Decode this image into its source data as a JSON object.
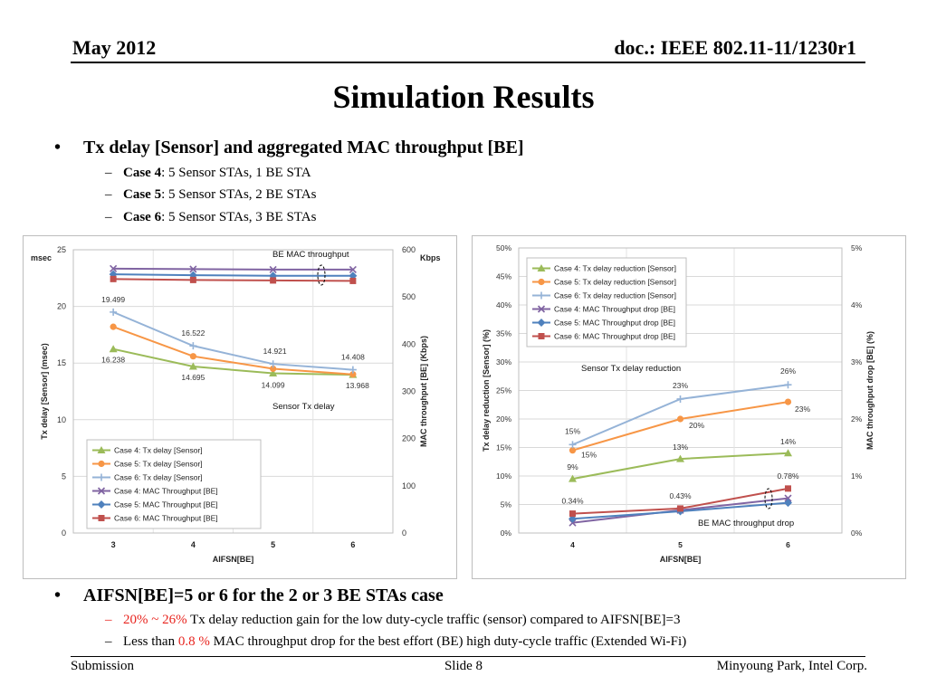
{
  "header": {
    "date": "May 2012",
    "doc": "doc.: IEEE 802.11-11/1230r1"
  },
  "title": "Simulation Results",
  "bullet1": {
    "text": "Tx delay [Sensor] and aggregated MAC throughput [BE]",
    "subs": [
      {
        "bold": "Case 4",
        "rest": ": 5 Sensor STAs, 1 BE STA"
      },
      {
        "bold": "Case 5",
        "rest": ": 5 Sensor STAs, 2 BE STAs"
      },
      {
        "bold": "Case 6",
        "rest": ": 5 Sensor STAs, 3 BE STAs"
      }
    ]
  },
  "bullet2": {
    "text": "AIFSN[BE]=5 or 6 for the 2 or 3 BE STAs case",
    "subs": [
      {
        "highlight": "20% ~ 26%",
        "rest": " Tx delay reduction gain for the low duty-cycle traffic (sensor) compared to AIFSN[BE]=3"
      },
      {
        "pre": "Less than ",
        "highlight": "0.8 %",
        "rest": " MAC throughput drop for the best effort (BE) high duty-cycle traffic (Extended Wi-Fi)"
      }
    ]
  },
  "footer": {
    "left": "Submission",
    "center": "Slide 8",
    "right": "Minyoung Park, Intel Corp."
  },
  "colors": {
    "green": "#9bbb59",
    "orange": "#f79646",
    "lightblue": "#95b3d7",
    "purple": "#8064a2",
    "blue": "#4f81bd",
    "red": "#c0504d",
    "highlight": "#e8241e"
  },
  "chart_data": [
    {
      "type": "line",
      "x": [
        3,
        4,
        5,
        6
      ],
      "xlabel": "AIFSN[BE]",
      "ylabel": "Tx delay [Sensor] (msec)",
      "y2label": "MAC throughput [BE] (Kbps)",
      "yunit": "msec",
      "y2unit": "Kbps",
      "ylim": [
        0,
        25
      ],
      "y2lim": [
        0,
        600
      ],
      "yticks": [
        "0",
        "5",
        "10",
        "15",
        "20",
        "25"
      ],
      "y2ticks": [
        "0",
        "100",
        "200",
        "300",
        "400",
        "500",
        "600"
      ],
      "grid": true,
      "legend": "bottom-left",
      "annotations": [
        "BE MAC throughput",
        "Sensor Tx delay"
      ],
      "series": [
        {
          "name": "Case 4: Tx delay [Sensor]",
          "axis": "left",
          "color": "#9bbb59",
          "marker": "triangle",
          "values": [
            16.238,
            14.695,
            14.099,
            13.968
          ],
          "labels": [
            "16.238",
            "14.695",
            "14.099",
            "13.968"
          ]
        },
        {
          "name": "Case 5: Tx delay [Sensor]",
          "axis": "left",
          "color": "#f79646",
          "marker": "circle",
          "values": [
            18.2,
            15.6,
            14.5,
            14.0
          ],
          "labels": [
            "",
            "",
            "",
            ""
          ]
        },
        {
          "name": "Case 6: Tx delay [Sensor]",
          "axis": "left",
          "color": "#95b3d7",
          "marker": "plus",
          "values": [
            19.499,
            16.522,
            14.921,
            14.408
          ],
          "labels": [
            "19.499",
            "16.522",
            "14.921",
            "14.408"
          ]
        },
        {
          "name": "Case 4: MAC Throughput [BE]",
          "axis": "right",
          "color": "#8064a2",
          "marker": "x",
          "values": [
            560,
            559,
            558,
            558
          ],
          "labels": [
            "",
            "",
            "",
            ""
          ]
        },
        {
          "name": "Case 5: MAC Throughput [BE]",
          "axis": "right",
          "color": "#4f81bd",
          "marker": "diamond",
          "values": [
            548,
            546,
            545,
            545
          ],
          "labels": [
            "",
            "",
            "",
            ""
          ]
        },
        {
          "name": "Case 6: MAC Throughput [BE]",
          "axis": "right",
          "color": "#c0504d",
          "marker": "square",
          "values": [
            538,
            536,
            535,
            534
          ],
          "labels": [
            "",
            "",
            "",
            ""
          ]
        }
      ]
    },
    {
      "type": "line",
      "x": [
        4,
        5,
        6
      ],
      "xlabel": "AIFSN[BE]",
      "ylabel": "Tx delay reduction [Sensor] (%)",
      "y2label": "MAC throughput drop [BE] (%)",
      "ylim": [
        0,
        50
      ],
      "y2lim": [
        0,
        5
      ],
      "yticks": [
        "0%",
        "5%",
        "10%",
        "15%",
        "20%",
        "25%",
        "30%",
        "35%",
        "40%",
        "45%",
        "50%"
      ],
      "y2ticks": [
        "0%",
        "1%",
        "2%",
        "3%",
        "4%",
        "5%"
      ],
      "grid": true,
      "legend": "top-left",
      "annotations": [
        "Sensor Tx delay reduction",
        "BE MAC throughput drop"
      ],
      "series": [
        {
          "name": "Case 4: Tx delay reduction [Sensor]",
          "axis": "left",
          "color": "#9bbb59",
          "marker": "triangle",
          "values": [
            9.5,
            13.0,
            14.0
          ],
          "labels": [
            "9%",
            "13%",
            "14%"
          ]
        },
        {
          "name": "Case 5: Tx delay reduction [Sensor]",
          "axis": "left",
          "color": "#f79646",
          "marker": "circle",
          "values": [
            14.5,
            20.0,
            23.0
          ],
          "labels": [
            "15%",
            "20%",
            "23%"
          ]
        },
        {
          "name": "Case 6: Tx delay reduction [Sensor]",
          "axis": "left",
          "color": "#95b3d7",
          "marker": "plus",
          "values": [
            15.5,
            23.5,
            26.0
          ],
          "labels": [
            "15%",
            "23%",
            "26%"
          ]
        },
        {
          "name": "Case 4: MAC Throughput drop [BE]",
          "axis": "right",
          "color": "#8064a2",
          "marker": "x",
          "values": [
            0.18,
            0.4,
            0.61
          ],
          "labels": [
            "",
            "",
            ""
          ]
        },
        {
          "name": "Case 5: MAC Throughput drop [BE]",
          "axis": "right",
          "color": "#4f81bd",
          "marker": "diamond",
          "values": [
            0.25,
            0.38,
            0.53
          ],
          "labels": [
            "",
            "",
            ""
          ]
        },
        {
          "name": "Case 6: MAC Throughput drop [BE]",
          "axis": "right",
          "color": "#c0504d",
          "marker": "square",
          "values": [
            0.34,
            0.43,
            0.78
          ],
          "labels": [
            "0.34%",
            "0.43%",
            "0.78%"
          ]
        }
      ]
    }
  ]
}
